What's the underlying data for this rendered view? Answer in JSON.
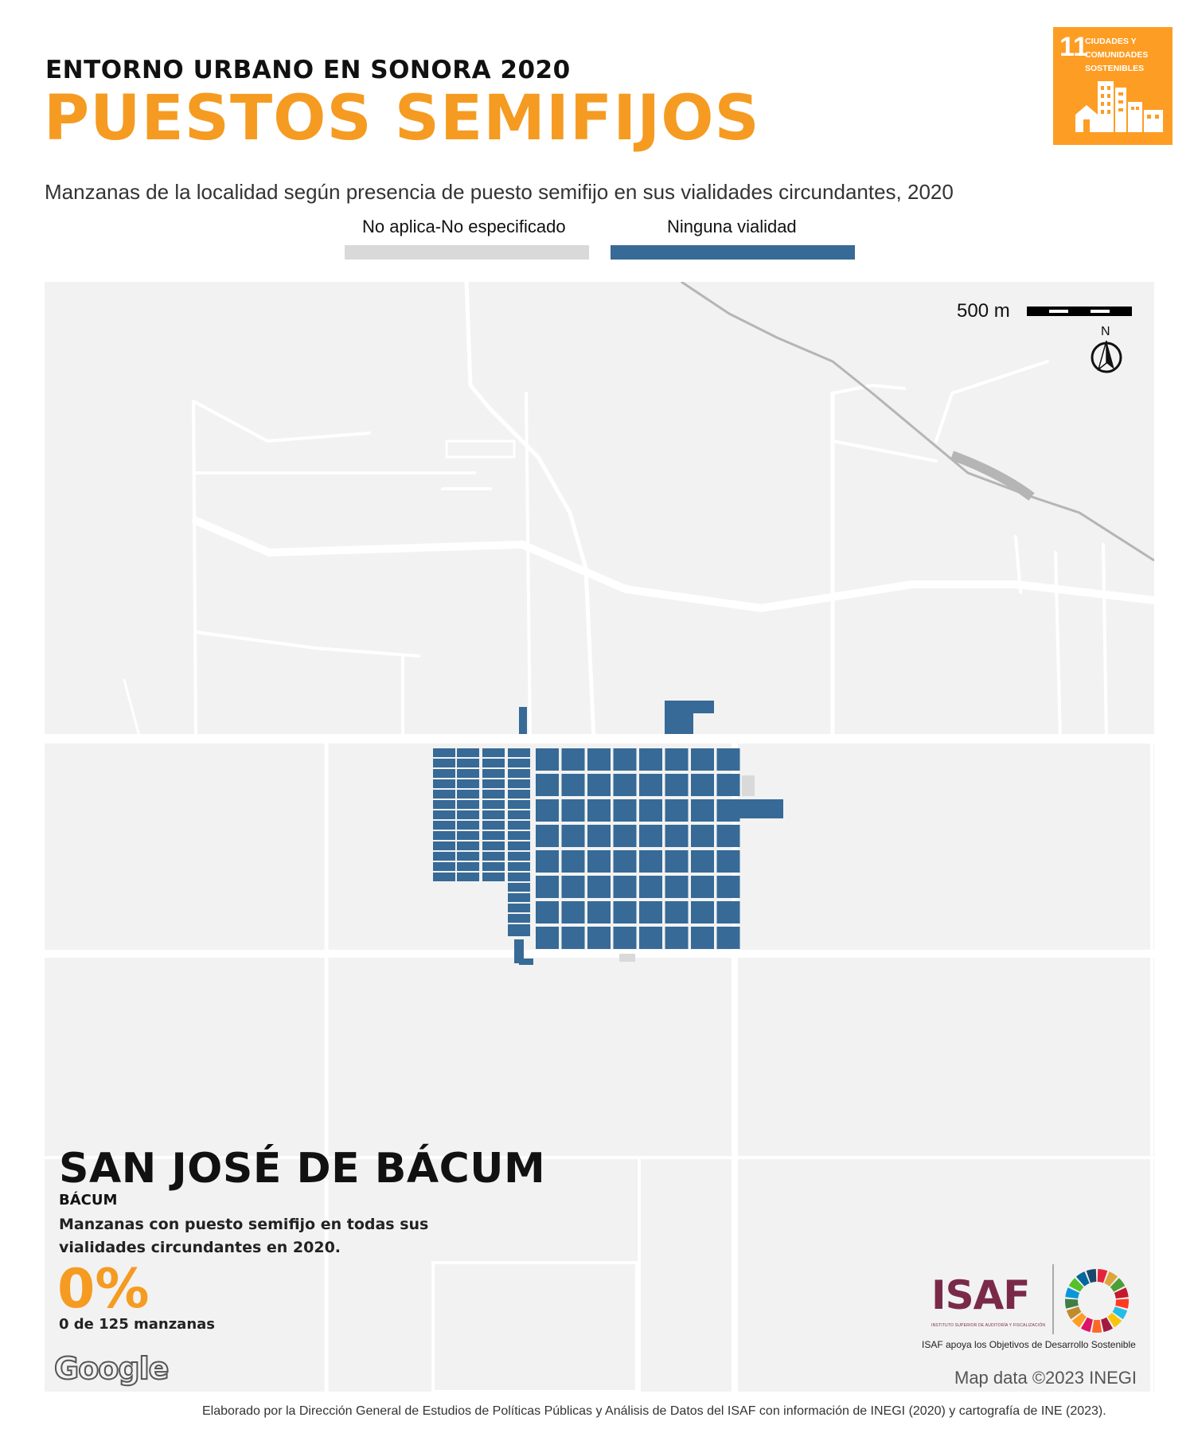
{
  "header": {
    "supertitle": "ENTORNO URBANO EN SONORA 2020",
    "title": "PUESTOS SEMIFIJOS",
    "subtitle": "Manzanas de la localidad según presencia de puesto semifijo en sus vialidades circundantes, 2020"
  },
  "sdg_badge": {
    "number": "11",
    "text_line1": "CIUDADES Y",
    "text_line2": "COMUNIDADES",
    "text_line3": "SOSTENIBLES",
    "color": "#fd9d24"
  },
  "legend": {
    "items": [
      {
        "label": "No aplica-No especificado",
        "color": "#d9d9d9"
      },
      {
        "label": "Ninguna vialidad",
        "color": "#376a96"
      }
    ]
  },
  "map": {
    "scale_label": "500 m",
    "north_label": "N",
    "background_color": "#f2f2f2",
    "road_color": "#ffffff",
    "block_color": "#376a96",
    "attribution": "Map data ©2023 INEGI",
    "google_logo": "Google"
  },
  "locality": {
    "name": "SAN JOSÉ DE BÁCUM",
    "municipality": "BÁCUM",
    "description": "Manzanas con puesto semifijo en todas sus vialidades circundantes en 2020.",
    "percent": "0%",
    "count": "0 de 125 manzanas"
  },
  "branding": {
    "isaf": "ISAF",
    "isaf_subtitle": "INSTITUTO SUPERIOR DE AUDITORÍA Y FISCALIZACIÓN",
    "caption": "ISAF apoya los Objetivos de Desarrollo Sostenible",
    "isaf_color": "#7a2a49"
  },
  "footer": {
    "text": "Elaborado por la Dirección General de Estudios de Políticas Públicas y Análisis de Datos del ISAF con información de INEGI (2020) y cartografía de INE (2023)."
  }
}
